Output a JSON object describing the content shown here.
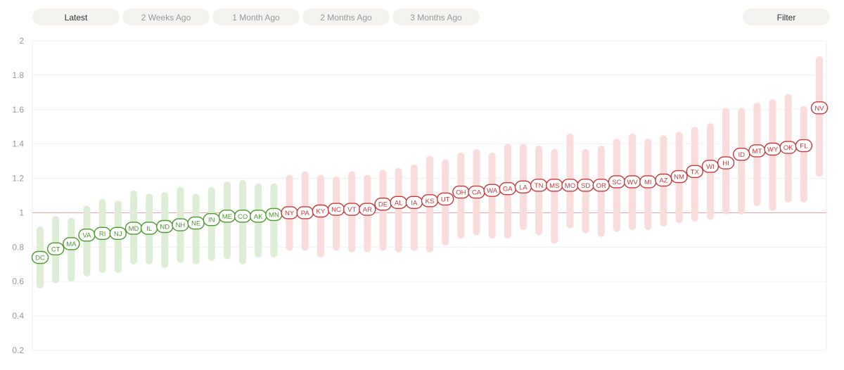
{
  "tabs": [
    {
      "label": "Latest",
      "active": true
    },
    {
      "label": "2 Weeks Ago",
      "active": false
    },
    {
      "label": "1 Month Ago",
      "active": false
    },
    {
      "label": "2 Months Ago",
      "active": false
    },
    {
      "label": "3 Months Ago",
      "active": false
    }
  ],
  "filter_label": "Filter",
  "chart_data": {
    "type": "range-dot",
    "ylim": [
      0.2,
      2
    ],
    "yticks": [
      "0.2",
      "0.4",
      "0.6",
      "0.8",
      "1",
      "1.2",
      "1.4",
      "1.6",
      "1.8",
      "2"
    ],
    "reference_line": 1,
    "grid": true,
    "colors": {
      "below": "#4a9a2e",
      "below_band": "#deedd6",
      "above": "#c83a3a",
      "above_band": "#f9dcdc",
      "reference": "#eaa5a5"
    },
    "states": [
      {
        "state": "DC",
        "value": 0.74,
        "low": 0.58,
        "high": 0.9
      },
      {
        "state": "CT",
        "value": 0.79,
        "low": 0.61,
        "high": 0.96
      },
      {
        "state": "MA",
        "value": 0.82,
        "low": 0.62,
        "high": 0.95
      },
      {
        "state": "VA",
        "value": 0.87,
        "low": 0.65,
        "high": 1.02
      },
      {
        "state": "RI",
        "value": 0.88,
        "low": 0.67,
        "high": 1.06
      },
      {
        "state": "NJ",
        "value": 0.88,
        "low": 0.67,
        "high": 1.05
      },
      {
        "state": "MD",
        "value": 0.91,
        "low": 0.72,
        "high": 1.11
      },
      {
        "state": "IL",
        "value": 0.91,
        "low": 0.72,
        "high": 1.09
      },
      {
        "state": "ND",
        "value": 0.92,
        "low": 0.7,
        "high": 1.1
      },
      {
        "state": "NH",
        "value": 0.93,
        "low": 0.73,
        "high": 1.13
      },
      {
        "state": "NE",
        "value": 0.94,
        "low": 0.72,
        "high": 1.09
      },
      {
        "state": "IN",
        "value": 0.96,
        "low": 0.74,
        "high": 1.13
      },
      {
        "state": "ME",
        "value": 0.98,
        "low": 0.75,
        "high": 1.16
      },
      {
        "state": "CO",
        "value": 0.98,
        "low": 0.72,
        "high": 1.17
      },
      {
        "state": "AK",
        "value": 0.98,
        "low": 0.76,
        "high": 1.15
      },
      {
        "state": "MN",
        "value": 0.99,
        "low": 0.76,
        "high": 1.15
      },
      {
        "state": "NY",
        "value": 1.0,
        "low": 0.8,
        "high": 1.2
      },
      {
        "state": "PA",
        "value": 1.0,
        "low": 0.8,
        "high": 1.22
      },
      {
        "state": "KY",
        "value": 1.01,
        "low": 0.76,
        "high": 1.2
      },
      {
        "state": "NC",
        "value": 1.02,
        "low": 0.8,
        "high": 1.19
      },
      {
        "state": "VT",
        "value": 1.02,
        "low": 0.79,
        "high": 1.22
      },
      {
        "state": "AR",
        "value": 1.02,
        "low": 0.79,
        "high": 1.2
      },
      {
        "state": "DE",
        "value": 1.05,
        "low": 0.8,
        "high": 1.23
      },
      {
        "state": "AL",
        "value": 1.06,
        "low": 0.79,
        "high": 1.24
      },
      {
        "state": "IA",
        "value": 1.06,
        "low": 0.8,
        "high": 1.26
      },
      {
        "state": "KS",
        "value": 1.07,
        "low": 0.79,
        "high": 1.31
      },
      {
        "state": "UT",
        "value": 1.08,
        "low": 0.83,
        "high": 1.29
      },
      {
        "state": "OH",
        "value": 1.12,
        "low": 0.87,
        "high": 1.33
      },
      {
        "state": "CA",
        "value": 1.12,
        "low": 0.89,
        "high": 1.35
      },
      {
        "state": "WA",
        "value": 1.13,
        "low": 0.87,
        "high": 1.33
      },
      {
        "state": "GA",
        "value": 1.14,
        "low": 0.87,
        "high": 1.38
      },
      {
        "state": "LA",
        "value": 1.15,
        "low": 0.92,
        "high": 1.38
      },
      {
        "state": "TN",
        "value": 1.16,
        "low": 0.89,
        "high": 1.37
      },
      {
        "state": "MS",
        "value": 1.16,
        "low": 0.84,
        "high": 1.35
      },
      {
        "state": "MO",
        "value": 1.16,
        "low": 0.93,
        "high": 1.44
      },
      {
        "state": "SD",
        "value": 1.16,
        "low": 0.9,
        "high": 1.35
      },
      {
        "state": "OR",
        "value": 1.16,
        "low": 0.88,
        "high": 1.37
      },
      {
        "state": "SC",
        "value": 1.18,
        "low": 0.91,
        "high": 1.41
      },
      {
        "state": "WV",
        "value": 1.18,
        "low": 0.92,
        "high": 1.44
      },
      {
        "state": "MI",
        "value": 1.18,
        "low": 0.92,
        "high": 1.41
      },
      {
        "state": "AZ",
        "value": 1.19,
        "low": 0.94,
        "high": 1.43
      },
      {
        "state": "NM",
        "value": 1.21,
        "low": 0.96,
        "high": 1.45
      },
      {
        "state": "TX",
        "value": 1.24,
        "low": 0.97,
        "high": 1.48
      },
      {
        "state": "WI",
        "value": 1.27,
        "low": 0.98,
        "high": 1.5
      },
      {
        "state": "HI",
        "value": 1.29,
        "low": 1.01,
        "high": 1.59
      },
      {
        "state": "ID",
        "value": 1.34,
        "low": 1.01,
        "high": 1.59
      },
      {
        "state": "MT",
        "value": 1.36,
        "low": 1.06,
        "high": 1.62
      },
      {
        "state": "WY",
        "value": 1.37,
        "low": 1.03,
        "high": 1.64
      },
      {
        "state": "OK",
        "value": 1.38,
        "low": 1.08,
        "high": 1.67
      },
      {
        "state": "FL",
        "value": 1.39,
        "low": 1.08,
        "high": 1.6
      },
      {
        "state": "NV",
        "value": 1.61,
        "low": 1.23,
        "high": 1.89
      }
    ]
  }
}
